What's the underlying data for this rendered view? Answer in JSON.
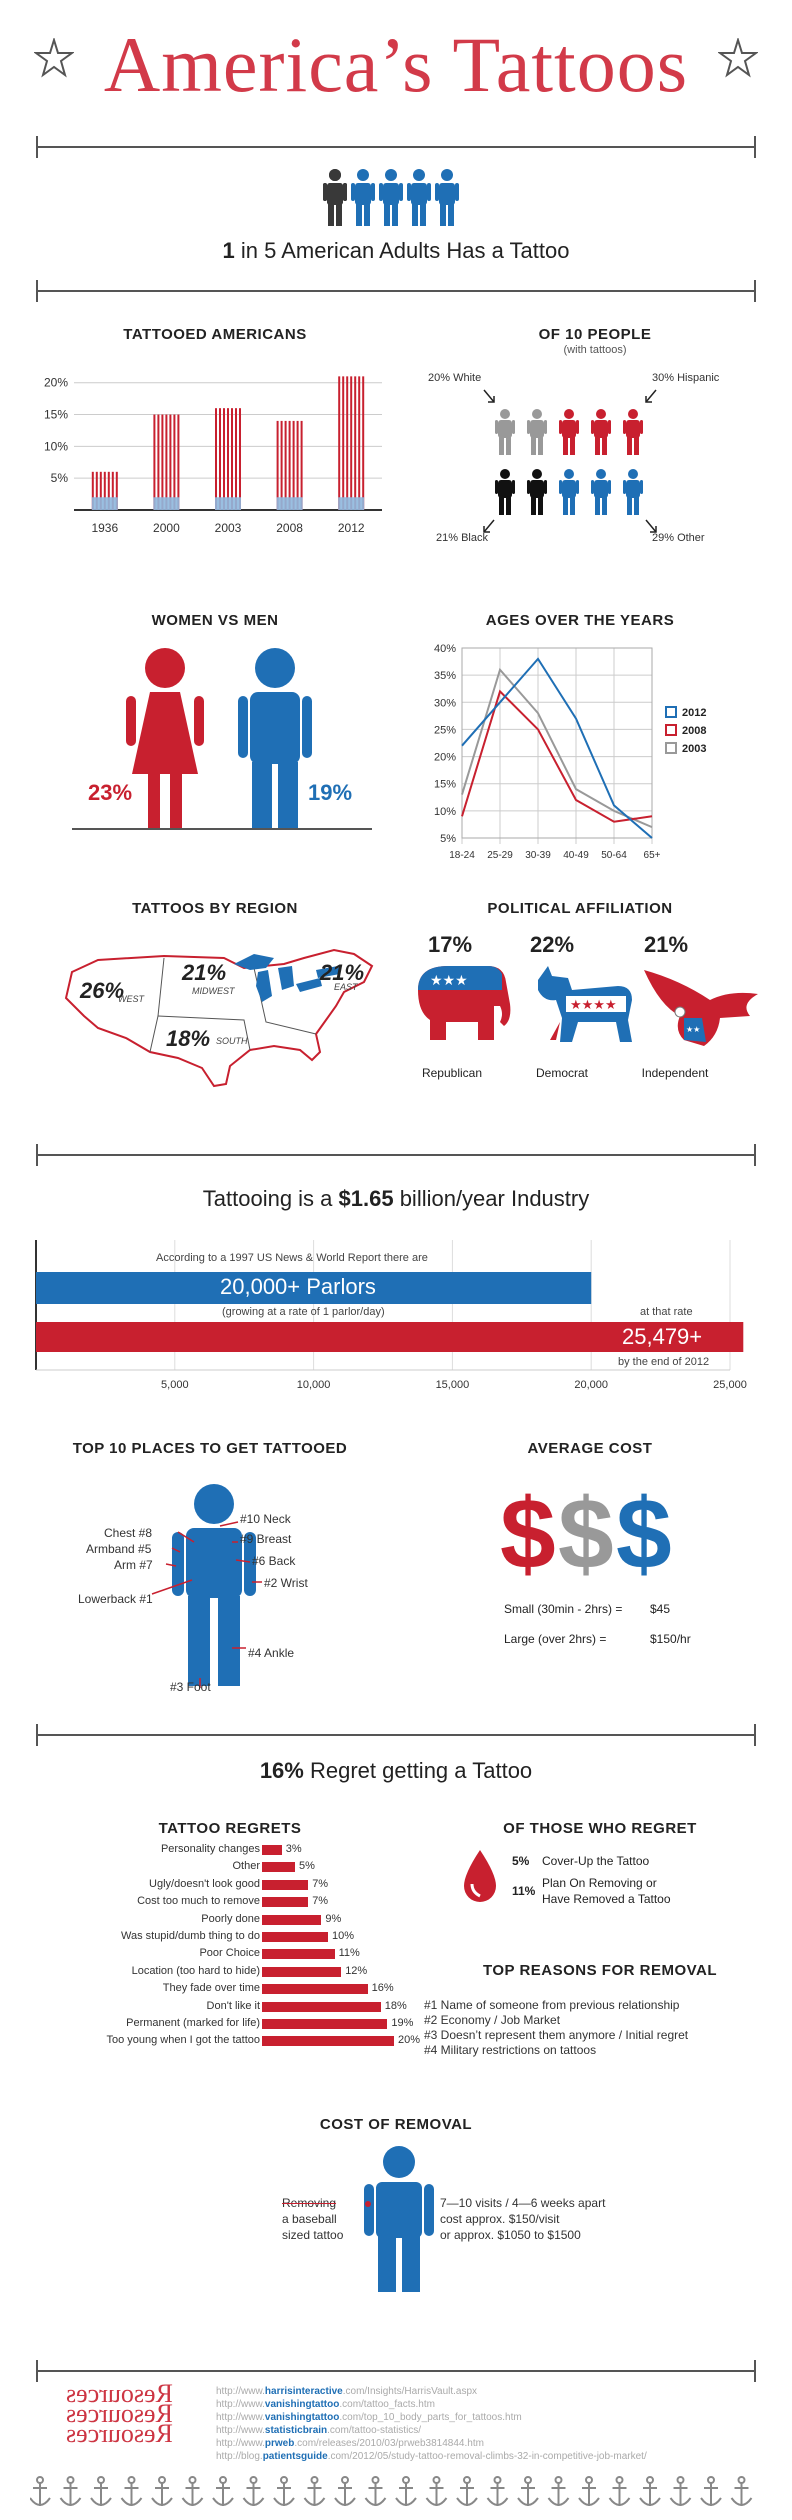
{
  "header": {
    "title": "America’s Tattoos"
  },
  "intro": {
    "headline_num": "1",
    "headline_rest": " in 5 American Adults Has a Tattoo"
  },
  "colors": {
    "red": "#c8202f",
    "blue": "#1f6fb5",
    "gray": "#999999",
    "black": "#111111"
  },
  "tattooed_americans": {
    "heading": "TATTOOED AMERICANS",
    "ticks": [
      "20%",
      "15%",
      "10%",
      "5%"
    ]
  },
  "of10": {
    "heading": "OF 10 PEOPLE",
    "subheading": "(with tattoos)",
    "white": "20% White",
    "hispanic": "30% Hispanic",
    "black": "21% Black",
    "other": "29% Other"
  },
  "women_men": {
    "heading": "WOMEN VS MEN",
    "women": "23%",
    "men": "19%"
  },
  "ages": {
    "heading": "AGES OVER THE YEARS",
    "yticks": [
      "40%",
      "35%",
      "30%",
      "25%",
      "20%",
      "15%",
      "10%",
      "5%"
    ],
    "legend": [
      "2012",
      "2008",
      "2003"
    ]
  },
  "region": {
    "heading": "TATTOOS BY REGION",
    "west_pct": "26%",
    "west": "WEST",
    "midwest_pct": "21%",
    "midwest": "MIDWEST",
    "east_pct": "21%",
    "east": "EAST",
    "south_pct": "18%",
    "south": "SOUTH"
  },
  "political": {
    "heading": "POLITICAL AFFILIATION",
    "republican_pct": "17%",
    "republican": "Republican",
    "democrat_pct": "22%",
    "democrat": "Democrat",
    "independent_pct": "21%",
    "independent": "Independent"
  },
  "industry": {
    "headline_pre": "Tattooing is a ",
    "headline_num": "$1.65",
    "headline_post": " billion/year Industry",
    "note_top": "According to a 1997 US News & World Report there are",
    "parlors": "20,000+ Parlors",
    "growth": "(growing at a rate of 1 parlor/day)",
    "at_that_rate": "at that rate",
    "future": "25,479+",
    "by_end": "by the end of 2012",
    "ticks": [
      "5,000",
      "10,000",
      "15,000",
      "20,000",
      "25,000"
    ]
  },
  "top10": {
    "heading": "TOP 10 PLACES TO GET TATTOOED",
    "neck": "#10 Neck",
    "breast": "#9 Breast",
    "back": "#6 Back",
    "wrist": "#2 Wrist",
    "chest": "Chest #8",
    "armband": "Armband #5",
    "arm": "Arm #7",
    "lowerback": "Lowerback #1",
    "ankle": "#4 Ankle",
    "foot": "#3 Foot"
  },
  "avg_cost": {
    "heading": "AVERAGE COST",
    "small_label": "Small (30min - 2hrs)  =",
    "small_value": "$45",
    "large_label": "Large (over 2hrs)  =",
    "large_value": "$150/hr"
  },
  "regret": {
    "headline_num": "16%",
    "headline_rest": " Regret getting a Tattoo",
    "heading": "TATTOO REGRETS"
  },
  "those_regret": {
    "heading": "OF THOSE WHO REGRET",
    "p1": "5%",
    "t1": "Cover-Up the Tattoo",
    "p2": "11%",
    "t2a": "Plan On Removing or",
    "t2b": "Have Removed a Tattoo"
  },
  "removal_reasons": {
    "heading": "TOP REASONS FOR REMOVAL",
    "items": [
      "#1  Name of someone from previous relationship",
      "#2  Economy / Job Market",
      "#3  Doesn’t represent them anymore / Initial regret",
      "#4  Military restrictions on tattoos"
    ]
  },
  "cost_removal": {
    "heading": "COST OF REMOVAL",
    "label_a": "Removing",
    "label_b": "a baseball",
    "label_c": "sized tattoo",
    "line1": "7—10 visits / 4—6 weeks apart",
    "line2": "cost approx. $150/visit",
    "line3": "or approx. $1050 to $1500"
  },
  "sources": {
    "heading": "Resources",
    "items": [
      {
        "pre": "http://www.",
        "b": "harrisinteractive",
        "post": ".com/Insights/HarrisVault.aspx"
      },
      {
        "pre": "http://www.",
        "b": "vanishingtattoo",
        "post": ".com/tattoo_facts.htm"
      },
      {
        "pre": "http://www.",
        "b": "vanishingtattoo",
        "post": ".com/top_10_body_parts_for_tattoos.htm"
      },
      {
        "pre": "http://www.",
        "b": "statisticbrain",
        "post": ".com/tattoo-statistics/"
      },
      {
        "pre": "http://www.",
        "b": "prweb",
        "post": ".com/releases/2010/03/prweb3814844.htm"
      },
      {
        "pre": "http://blog.",
        "b": "patientsguide",
        "post": ".com/2012/05/study-tattoo-removal-climbs-32-in-competitive-job-market/"
      }
    ]
  },
  "chart_data": [
    {
      "type": "bar",
      "title": "TATTOOED AMERICANS",
      "categories": [
        "1936",
        "2000",
        "2003",
        "2008",
        "2012"
      ],
      "values": [
        6,
        15,
        16,
        14,
        21
      ],
      "ylim": [
        0,
        22
      ],
      "unit": "%"
    },
    {
      "type": "pictogram",
      "title": "OF 10 PEOPLE",
      "categories": [
        "20% White",
        "30% Hispanic",
        "21% Black",
        "29% Other"
      ],
      "values": [
        2,
        3,
        2,
        3
      ],
      "colors": [
        "#999999",
        "#c8202f",
        "#111111",
        "#1f6fb5"
      ]
    },
    {
      "type": "bar",
      "title": "WOMEN VS MEN",
      "categories": [
        "Women",
        "Men"
      ],
      "values": [
        23,
        19
      ],
      "unit": "%"
    },
    {
      "type": "line",
      "title": "AGES OVER THE YEARS",
      "x": [
        "18-24",
        "25-29",
        "30-39",
        "40-49",
        "50-64",
        "65+"
      ],
      "ylim": [
        5,
        40
      ],
      "series": [
        {
          "name": "2012",
          "color": "#1f6fb5",
          "values": [
            22,
            30,
            38,
            27,
            11,
            5
          ]
        },
        {
          "name": "2008",
          "color": "#c8202f",
          "values": [
            9,
            32,
            25,
            12,
            8,
            9
          ]
        },
        {
          "name": "2003",
          "color": "#999999",
          "values": [
            13,
            36,
            28,
            14,
            10,
            7
          ]
        }
      ],
      "legend": "right"
    },
    {
      "type": "bar",
      "title": "TATTOOS BY REGION",
      "categories": [
        "WEST",
        "MIDWEST",
        "EAST",
        "SOUTH"
      ],
      "values": [
        26,
        21,
        21,
        18
      ],
      "unit": "%"
    },
    {
      "type": "bar",
      "title": "POLITICAL AFFILIATION",
      "categories": [
        "Republican",
        "Democrat",
        "Independent"
      ],
      "values": [
        17,
        22,
        21
      ],
      "unit": "%"
    },
    {
      "type": "bar",
      "title": "Parlors",
      "categories": [
        "1997",
        "end of 2012"
      ],
      "values": [
        20000,
        25479
      ],
      "xlim": [
        0,
        25000
      ],
      "orientation": "horizontal"
    },
    {
      "type": "bar",
      "title": "TATTOO REGRETS",
      "orientation": "horizontal",
      "categories": [
        "Personality changes",
        "Other",
        "Ugly/doesn't look good",
        "Cost too much to remove",
        "Poorly done",
        "Was stupid/dumb thing to do",
        "Poor Choice",
        "Location (too hard to hide)",
        "They fade over time",
        "Don't like it",
        "Permanent (marked for life)",
        "Too young when I got the tattoo"
      ],
      "values": [
        3,
        5,
        7,
        7,
        9,
        10,
        11,
        12,
        16,
        18,
        19,
        20
      ],
      "labels": [
        "3%",
        "5%",
        "7%",
        "7%",
        "9%",
        "10%",
        "11%",
        "12%",
        "16%",
        "18%",
        "19%",
        "20%"
      ],
      "unit": "%"
    }
  ]
}
